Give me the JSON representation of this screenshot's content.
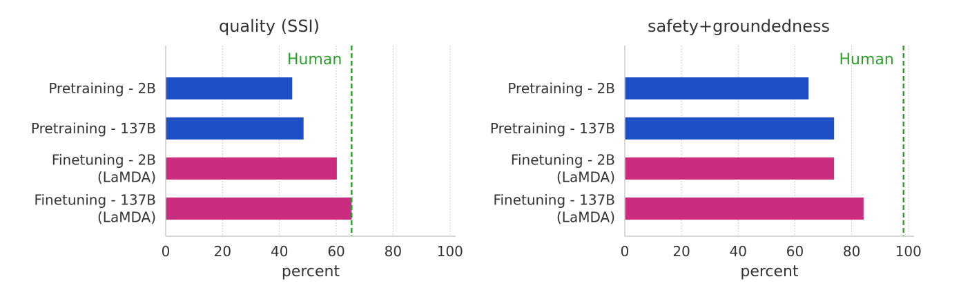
{
  "chart_data": [
    {
      "type": "bar",
      "orientation": "horizontal",
      "title": "quality (SSI)",
      "xlabel": "percent",
      "ylabel": "",
      "xlim": [
        0,
        102
      ],
      "xticks": [
        0,
        20,
        40,
        60,
        80,
        100
      ],
      "grid": "vertical",
      "categories": [
        [
          "Pretraining - 2B"
        ],
        [
          "Pretraining - 137B"
        ],
        [
          "Finetuning - 2B",
          "(LaMDA)"
        ],
        [
          "Finetuning - 137B",
          "(LaMDA)"
        ]
      ],
      "values": [
        44.5,
        48.5,
        60.2,
        65.4
      ],
      "bar_colors": [
        "#1f4fc4",
        "#1f4fc4",
        "#cc2c80",
        "#cc2c80"
      ],
      "reference_line": {
        "label": "Human",
        "value": 65.4,
        "color": "#2ca02c",
        "style": "dashed"
      }
    },
    {
      "type": "bar",
      "orientation": "horizontal",
      "title": "safety+groundedness",
      "xlabel": "percent",
      "ylabel": "",
      "xlim": [
        0,
        102
      ],
      "xticks": [
        0,
        20,
        40,
        60,
        80,
        100
      ],
      "grid": "vertical",
      "categories": [
        [
          "Pretraining - 2B"
        ],
        [
          "Pretraining - 137B"
        ],
        [
          "Finetuning - 2B",
          "(LaMDA)"
        ],
        [
          "Finetuning - 137B",
          "(LaMDA)"
        ]
      ],
      "values": [
        64.8,
        73.8,
        73.8,
        84.2
      ],
      "bar_colors": [
        "#1f4fc4",
        "#1f4fc4",
        "#cc2c80",
        "#cc2c80"
      ],
      "reference_line": {
        "label": "Human",
        "value": 98.3,
        "color": "#2ca02c",
        "style": "dashed"
      }
    }
  ]
}
